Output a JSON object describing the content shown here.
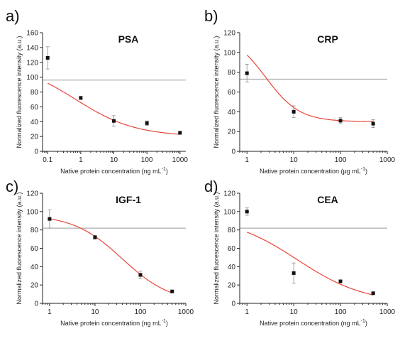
{
  "chart_data": [
    {
      "panel": "a)",
      "type": "scatter",
      "title": "PSA",
      "xlabel": "Native protein concentration (ng mL",
      "xlabel_sup": "-1",
      "xlabel_end": ")",
      "ylabel": "Normalized fluorescence intensity (a.u.)",
      "xscale": "log",
      "xlim": [
        0.07,
        1500
      ],
      "ylim": [
        0,
        160
      ],
      "xticks": [
        0.1,
        1,
        10,
        100,
        1000
      ],
      "xtick_labels": [
        "0.1",
        "1",
        "10",
        "100",
        "1000"
      ],
      "yticks": [
        0,
        20,
        40,
        60,
        80,
        100,
        120,
        140,
        160
      ],
      "points": [
        {
          "x": 0.1,
          "y": 126,
          "err": 15
        },
        {
          "x": 1,
          "y": 72,
          "err": 2
        },
        {
          "x": 10,
          "y": 41,
          "err": 7
        },
        {
          "x": 100,
          "y": 38,
          "err": 3
        },
        {
          "x": 1000,
          "y": 25,
          "err": 2
        }
      ],
      "reference_line": 96,
      "fit": {
        "top": 120,
        "bottom": 20,
        "ec50": 0.7,
        "hill": 0.48,
        "x_range": [
          0.1,
          1000
        ]
      }
    },
    {
      "panel": "b)",
      "type": "scatter",
      "title": "CRP",
      "xlabel": "Native protein concentration (μg mL",
      "xlabel_sup": "-1",
      "xlabel_end": ")",
      "ylabel": "Normalized fluorescence intensity (a.u.)",
      "xscale": "log",
      "xlim": [
        0.7,
        1000
      ],
      "ylim": [
        0,
        120
      ],
      "xticks": [
        1,
        10,
        100,
        1000
      ],
      "xtick_labels": [
        "1",
        "10",
        "100",
        "1000"
      ],
      "yticks": [
        0,
        20,
        40,
        60,
        80,
        100,
        120
      ],
      "points": [
        {
          "x": 1,
          "y": 79,
          "err": 9
        },
        {
          "x": 10,
          "y": 40,
          "err": 6
        },
        {
          "x": 100,
          "y": 31,
          "err": 3
        },
        {
          "x": 500,
          "y": 28,
          "err": 4
        }
      ],
      "reference_line": 73,
      "fit": {
        "top": 120,
        "bottom": 30,
        "ec50": 2.5,
        "hill": 1.2,
        "x_range": [
          1,
          500
        ]
      }
    },
    {
      "panel": "c)",
      "type": "scatter",
      "title": "IGF-1",
      "xlabel": "Native protein concentration (ng mL",
      "xlabel_sup": "-1",
      "xlabel_end": ")",
      "ylabel": "Normalized fluorescence intensity (a.u.)",
      "xscale": "log",
      "xlim": [
        0.7,
        1000
      ],
      "ylim": [
        0,
        120
      ],
      "xticks": [
        1,
        10,
        100,
        1000
      ],
      "xtick_labels": [
        "1",
        "10",
        "100",
        "1000"
      ],
      "yticks": [
        0,
        20,
        40,
        60,
        80,
        100,
        120
      ],
      "points": [
        {
          "x": 1,
          "y": 92,
          "err": 10
        },
        {
          "x": 10,
          "y": 72,
          "err": 2
        },
        {
          "x": 100,
          "y": 31,
          "err": 4
        },
        {
          "x": 500,
          "y": 13,
          "err": 1
        }
      ],
      "reference_line": 82,
      "fit": {
        "top": 97,
        "bottom": 0,
        "ec50": 40,
        "hill": 0.8,
        "x_range": [
          1,
          500
        ]
      }
    },
    {
      "panel": "d)",
      "type": "scatter",
      "title": "CEA",
      "xlabel": "Native protein concentration (ng mL",
      "xlabel_sup": "-1",
      "xlabel_end": ")",
      "ylabel": "Normalized fluorescence intensity (a.u.)",
      "xscale": "log",
      "xlim": [
        0.7,
        1000
      ],
      "ylim": [
        0,
        120
      ],
      "xticks": [
        1,
        10,
        100,
        1000
      ],
      "xtick_labels": [
        "1",
        "10",
        "100",
        "1000"
      ],
      "yticks": [
        0,
        20,
        40,
        60,
        80,
        100,
        120
      ],
      "points": [
        {
          "x": 1,
          "y": 100,
          "err": 4
        },
        {
          "x": 10,
          "y": 33,
          "err": 11
        },
        {
          "x": 100,
          "y": 24,
          "err": 1
        },
        {
          "x": 500,
          "y": 11,
          "err": 1
        }
      ],
      "reference_line": 82,
      "fit": {
        "top": 95,
        "bottom": 0,
        "ec50": 12,
        "hill": 0.6,
        "x_range": [
          1,
          500
        ]
      }
    }
  ],
  "colors": {
    "fit_curve": "#e8463a",
    "reference_line": "#9a9a9a",
    "data_point": "#111111",
    "error_bar": "#8a8a8a"
  }
}
